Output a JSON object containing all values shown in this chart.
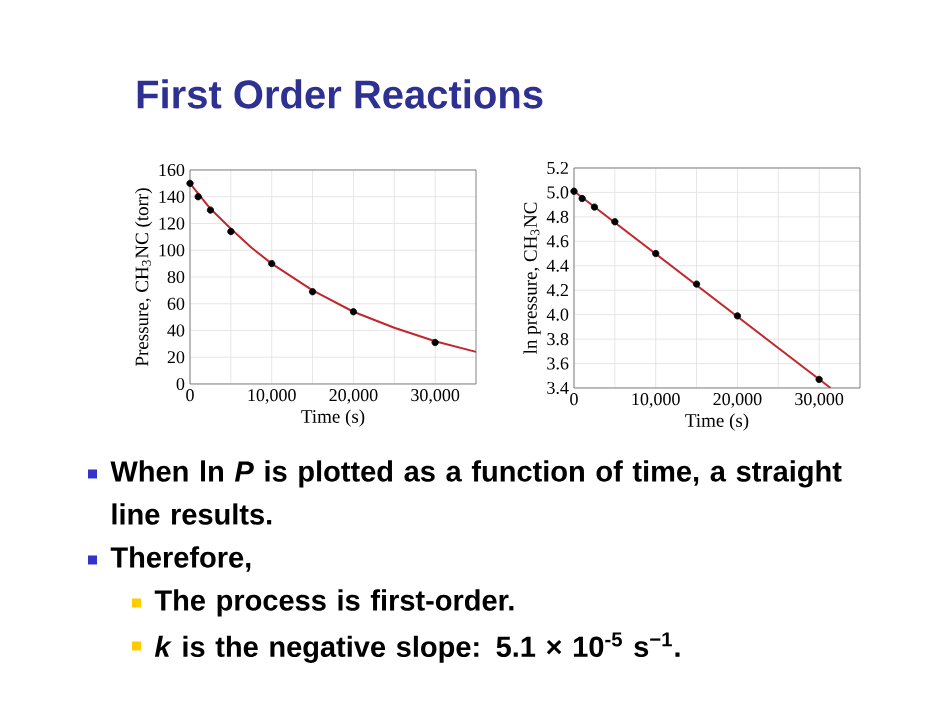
{
  "chart_data": [
    {
      "type": "other",
      "title": "First Order Reactions",
      "annotations": [
        "When ln *P* is plotted as a function of time, a straight line results.",
        "Therefore,",
        "The process is first-order.",
        "*k* is the negative slope:  5.1 × 10$^{-5}$ s$^{−1}$."
      ]
    },
    {
      "type": "scatter",
      "xlabel": "Time (s)",
      "ylabel": "Pressure, CH$_{3}$NC (torr)",
      "xlim": [
        0,
        35000
      ],
      "ylim": [
        0,
        160
      ],
      "xticks": [
        0,
        {
          "value": 5000,
          "label": null
        },
        {
          "value": 10000,
          "label": "10,000"
        },
        {
          "value": 15000,
          "label": null
        },
        {
          "value": 20000,
          "label": "20,000"
        },
        {
          "value": 25000,
          "label": null
        },
        {
          "value": 30000,
          "label": "30,000"
        }
      ],
      "yticks": [
        0,
        20,
        40,
        60,
        80,
        100,
        120,
        140,
        160
      ],
      "grid": true,
      "series": [
        {
          "type": "line",
          "color": "#c0282e",
          "x": [
            0,
            2500,
            5000,
            7500,
            10000,
            15000,
            20000,
            25000,
            30000,
            35000
          ],
          "values": [
            150,
            131,
            116,
            102,
            90,
            70,
            54,
            42,
            32,
            24
          ]
        },
        {
          "type": "scatter",
          "color": "#000000",
          "marker": "circle",
          "x": [
            0,
            1000,
            2500,
            5000,
            10000,
            15000,
            20000,
            30000
          ],
          "values": [
            150,
            140,
            130,
            114,
            90,
            69,
            54,
            31
          ]
        }
      ]
    },
    {
      "type": "scatter",
      "xlabel": "Time (s)",
      "ylabel": "ln pressure, CH$_{3}$NC",
      "xlim": [
        0,
        35000
      ],
      "ylim": [
        3.4,
        5.2
      ],
      "xticks": [
        0,
        {
          "value": 5000,
          "label": null
        },
        {
          "value": 10000,
          "label": "10,000"
        },
        {
          "value": 15000,
          "label": null
        },
        {
          "value": 20000,
          "label": "20,000"
        },
        {
          "value": 25000,
          "label": null
        },
        {
          "value": 30000,
          "label": "30,000"
        }
      ],
      "yticks": [
        3.4,
        3.6,
        3.8,
        {
          "value": 4,
          "label": "4.0"
        },
        4.2,
        4.4,
        4.6,
        4.8,
        {
          "value": 5,
          "label": "5.0"
        },
        5.2
      ],
      "grid": true,
      "series": [
        {
          "type": "line",
          "color": "#c0282e",
          "x": [
            0,
            31400
          ],
          "values": [
            5.01,
            3.4
          ]
        },
        {
          "type": "scatter",
          "color": "#000000",
          "marker": "circle",
          "x": [
            0,
            1000,
            2500,
            5000,
            10000,
            15000,
            20000,
            30000
          ],
          "values": [
            5.01,
            4.95,
            4.88,
            4.76,
            4.5,
            4.25,
            3.99,
            3.47
          ]
        }
      ]
    }
  ]
}
